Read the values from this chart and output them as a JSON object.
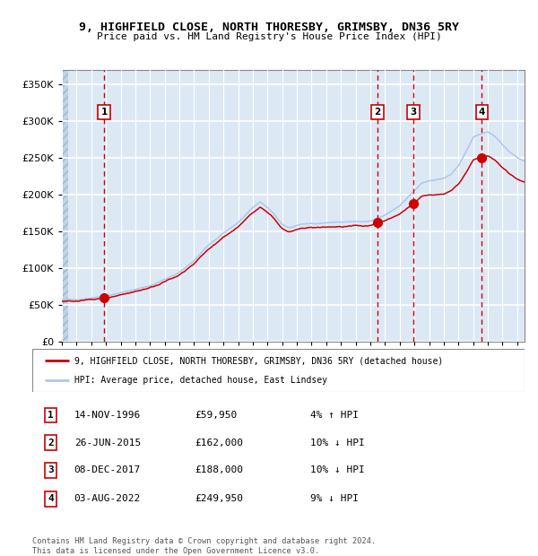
{
  "title": "9, HIGHFIELD CLOSE, NORTH THORESBY, GRIMSBY, DN36 5RY",
  "subtitle": "Price paid vs. HM Land Registry's House Price Index (HPI)",
  "xlim_start": 1994.0,
  "xlim_end": 2025.5,
  "ylim": [
    0,
    370000
  ],
  "yticks": [
    0,
    50000,
    100000,
    150000,
    200000,
    250000,
    300000,
    350000
  ],
  "sale_dates": [
    1996.87,
    2015.49,
    2017.93,
    2022.59
  ],
  "sale_prices": [
    59950,
    162000,
    188000,
    249950
  ],
  "sale_labels": [
    "1",
    "2",
    "3",
    "4"
  ],
  "hpi_line_color": "#aec6e8",
  "price_line_color": "#cc0000",
  "sale_dot_color": "#cc0000",
  "vline_color": "#cc0000",
  "bg_color": "#dce9f5",
  "grid_color": "#ffffff",
  "legend_line1": "9, HIGHFIELD CLOSE, NORTH THORESBY, GRIMSBY, DN36 5RY (detached house)",
  "legend_line2": "HPI: Average price, detached house, East Lindsey",
  "table_rows": [
    [
      "1",
      "14-NOV-1996",
      "£59,950",
      "4% ↑ HPI"
    ],
    [
      "2",
      "26-JUN-2015",
      "£162,000",
      "10% ↓ HPI"
    ],
    [
      "3",
      "08-DEC-2017",
      "£188,000",
      "10% ↓ HPI"
    ],
    [
      "4",
      "03-AUG-2022",
      "£249,950",
      "9% ↓ HPI"
    ]
  ],
  "footer": "Contains HM Land Registry data © Crown copyright and database right 2024.\nThis data is licensed under the Open Government Licence v3.0.",
  "anchors_t": [
    1994.0,
    1995.0,
    1996.0,
    1997.0,
    1998.0,
    1999.0,
    2000.0,
    2001.0,
    2002.0,
    2003.0,
    2004.0,
    2005.0,
    2006.0,
    2007.0,
    2007.5,
    2008.0,
    2008.5,
    2009.0,
    2009.5,
    2010.0,
    2011.0,
    2012.0,
    2013.0,
    2014.0,
    2015.0,
    2015.5,
    2016.0,
    2017.0,
    2017.5,
    2018.0,
    2018.5,
    2019.0,
    2019.5,
    2020.0,
    2020.5,
    2021.0,
    2021.5,
    2022.0,
    2022.5,
    2023.0,
    2023.5,
    2024.0,
    2024.5,
    2025.0,
    2025.5
  ],
  "anchors_hpi": [
    57000,
    58000,
    60000,
    63000,
    67000,
    71000,
    76000,
    85000,
    95000,
    110000,
    132000,
    148000,
    162000,
    182000,
    190000,
    182000,
    172000,
    160000,
    155000,
    158000,
    160000,
    162000,
    163000,
    163000,
    165000,
    168000,
    172000,
    185000,
    195000,
    205000,
    215000,
    218000,
    220000,
    222000,
    228000,
    240000,
    258000,
    278000,
    282000,
    285000,
    278000,
    268000,
    258000,
    250000,
    245000
  ]
}
